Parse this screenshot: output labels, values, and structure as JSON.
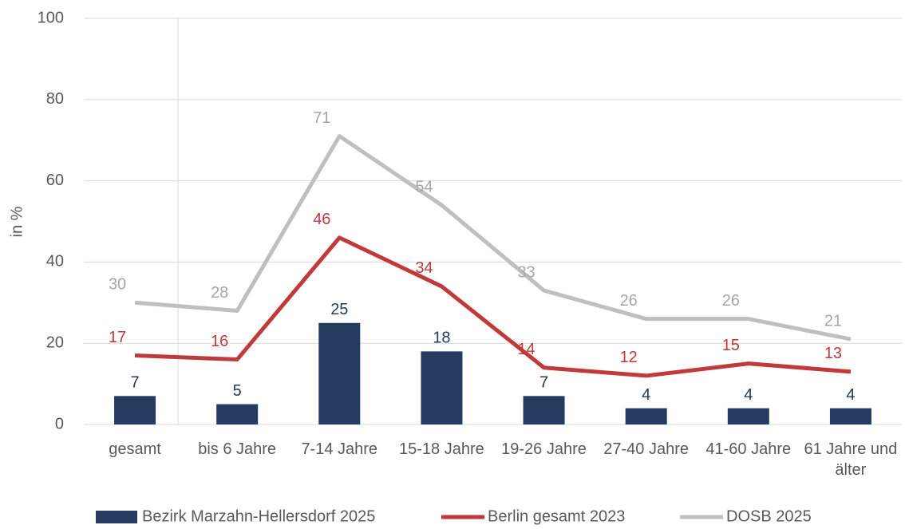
{
  "chart_data": {
    "type": "bar",
    "y_label": "in %",
    "categories": [
      "gesamt",
      "bis 6 Jahre",
      "7-14 Jahre",
      "15-18 Jahre",
      "19-26 Jahre",
      "27-40 Jahre",
      "41-60 Jahre",
      "61 Jahre und älter"
    ],
    "series": [
      {
        "name": "Bezirk Marzahn-Hellersdorf 2025",
        "type": "bar",
        "color": "#243a5e",
        "values": [
          7,
          5,
          25,
          18,
          7,
          4,
          4,
          4
        ]
      },
      {
        "name": "Berlin gesamt 2023",
        "type": "line",
        "color": "#c0393b",
        "values": [
          17,
          16,
          46,
          34,
          14,
          12,
          15,
          13
        ]
      },
      {
        "name": "DOSB 2025",
        "type": "line",
        "color": "#bfbfbf",
        "label_color": "#a6a6a6",
        "values": [
          30,
          28,
          71,
          54,
          33,
          26,
          26,
          21
        ]
      }
    ],
    "ylim": [
      0,
      100
    ],
    "yticks": [
      0,
      20,
      40,
      60,
      80,
      100
    ],
    "grid": true,
    "legend": "bottom"
  }
}
